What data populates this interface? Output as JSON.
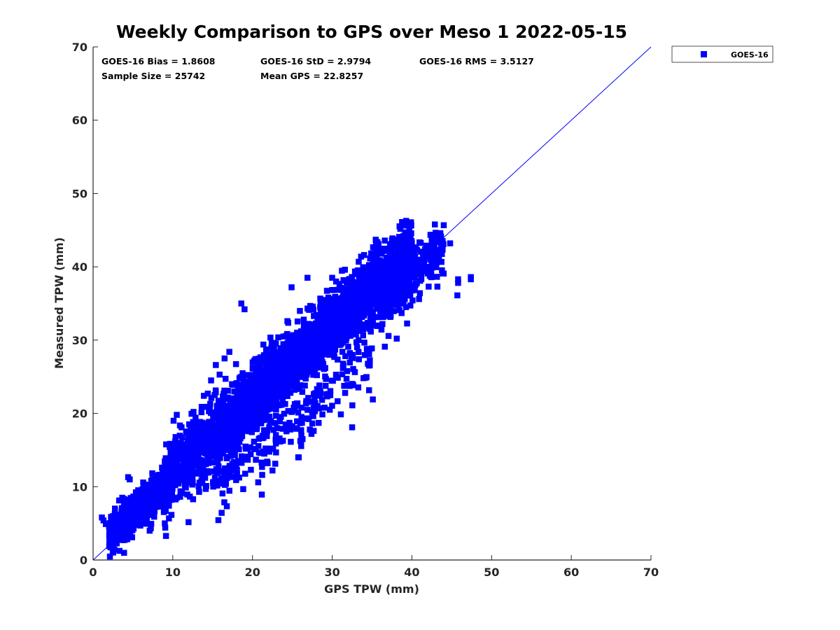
{
  "chart_data": {
    "type": "scatter",
    "title": "Weekly Comparison to GPS over Meso 1 2022-05-15",
    "xlabel": "GPS TPW (mm)",
    "ylabel": "Measured TPW (mm)",
    "xlim": [
      0,
      70
    ],
    "ylim": [
      0,
      70
    ],
    "xticks": [
      "0",
      "10",
      "20",
      "30",
      "40",
      "50",
      "60",
      "70"
    ],
    "yticks": [
      "0",
      "10",
      "20",
      "30",
      "40",
      "50",
      "60",
      "70"
    ],
    "grid": false,
    "legend_position": "outside-top-right",
    "reference_line": {
      "from": [
        0,
        0
      ],
      "to": [
        70,
        70
      ],
      "color": "#0000ff"
    },
    "stats": {
      "bias": "GOES-16 Bias = 1.8608",
      "std": "GOES-16 StD = 2.9794",
      "rms": "GOES-16 RMS = 3.5127",
      "sample_size": "Sample Size = 25742",
      "mean_gps": "Mean GPS = 22.8257"
    },
    "series": [
      {
        "name": "GOES-16",
        "color": "#0000ff",
        "marker": "square",
        "cluster_description": "dense band along the 1:1 line from x 1–45 mm, with spread of about ±3 mm",
        "outliers": [
          [
            45.8,
            38.3
          ],
          [
            45.8,
            37.8
          ],
          [
            45.7,
            36.1
          ],
          [
            47.4,
            38.3
          ],
          [
            47.4,
            38.6
          ],
          [
            44.8,
            43.2
          ],
          [
            42.3,
            40.0
          ],
          [
            41.3,
            39.8
          ],
          [
            40.3,
            38.6
          ],
          [
            39.5,
            40.4
          ],
          [
            38.5,
            42.8
          ],
          [
            35.5,
            43.4
          ],
          [
            35.8,
            43.1
          ],
          [
            34.0,
            41.6
          ],
          [
            33.2,
            39.5
          ],
          [
            32.1,
            37.8
          ],
          [
            26.9,
            38.5
          ],
          [
            19.0,
            34.2
          ],
          [
            18.6,
            35.0
          ],
          [
            29.7,
            20.5
          ],
          [
            32.5,
            18.1
          ],
          [
            35.1,
            21.9
          ],
          [
            36.6,
            29.1
          ],
          [
            38.1,
            30.2
          ],
          [
            36.7,
            33.9
          ],
          [
            41.0,
            36.4
          ],
          [
            42.1,
            37.3
          ],
          [
            28.3,
            18.7
          ],
          [
            27.4,
            17.2
          ],
          [
            25.5,
            17.9
          ],
          [
            23.8,
            17.9
          ],
          [
            27.2,
            17.8
          ],
          [
            26.1,
            16.1
          ],
          [
            22.9,
            16.4
          ],
          [
            22.2,
            15.2
          ],
          [
            25.8,
            14.0
          ],
          [
            21.9,
            13.2
          ],
          [
            21.0,
            14.6
          ],
          [
            19.4,
            15.2
          ],
          [
            19.3,
            13.8
          ],
          [
            17.8,
            14.3
          ],
          [
            17.3,
            14.2
          ],
          [
            18.2,
            13.5
          ],
          [
            17.9,
            12.9
          ],
          [
            21.2,
            12.7
          ],
          [
            10.1,
            19.0
          ],
          [
            10.5,
            19.8
          ],
          [
            11.1,
            18.1
          ],
          [
            12.6,
            20.2
          ],
          [
            13.9,
            22.4
          ],
          [
            14.8,
            24.5
          ],
          [
            15.4,
            26.6
          ],
          [
            16.5,
            27.5
          ],
          [
            17.1,
            28.4
          ],
          [
            14.2,
            10.1
          ],
          [
            13.3,
            9.3
          ],
          [
            15.5,
            11.9
          ],
          [
            16.7,
            12.2
          ],
          [
            4.6,
            11.0
          ],
          [
            4.4,
            11.3
          ],
          [
            1.1,
            5.8
          ],
          [
            1.3,
            5.4
          ],
          [
            1.6,
            4.9
          ],
          [
            2.1,
            3.5
          ],
          [
            4.3,
            3.2
          ],
          [
            4.9,
            3.1
          ],
          [
            3.6,
            3.4
          ],
          [
            7.1,
            4.0
          ],
          [
            9.0,
            5.0
          ],
          [
            9.1,
            6.7
          ],
          [
            42.9,
            41.5
          ],
          [
            43.7,
            41.8
          ],
          [
            43.1,
            40.6
          ],
          [
            40.9,
            35.6
          ],
          [
            43.2,
            37.3
          ],
          [
            37.6,
            41.4
          ],
          [
            37.0,
            41.0
          ],
          [
            31.6,
            39.6
          ],
          [
            30.0,
            38.5
          ],
          [
            24.9,
            37.2
          ]
        ]
      }
    ]
  }
}
